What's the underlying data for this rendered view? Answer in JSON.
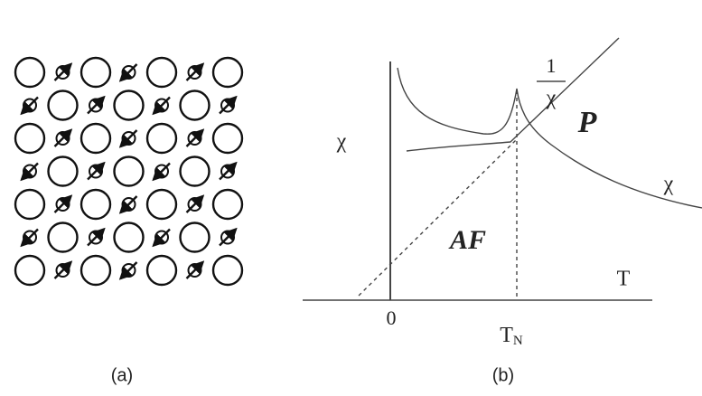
{
  "panel_a": {
    "caption": "(a)"
  },
  "panel_b": {
    "caption": "(b)",
    "axis_label_y": "χ",
    "axis_label_x": "T",
    "origin_label": "0",
    "neel_label": {
      "main": "T",
      "sub": "N"
    },
    "inverse_label": {
      "numerator": "1",
      "denominator": "χ"
    },
    "region_paramagnetic": "P",
    "region_antiferromagnetic": "AF",
    "curve_label": "χ"
  }
}
